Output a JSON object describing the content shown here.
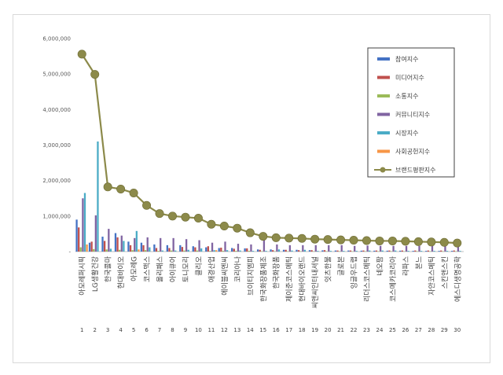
{
  "chart_data": {
    "type": "bar",
    "ylim": [
      0,
      6000000
    ],
    "yticks": [
      "-",
      "1,000,000",
      "2,000,000",
      "3,000,000",
      "4,000,000",
      "5,000,000",
      "6,000,000"
    ],
    "numbers": [
      "1",
      "2",
      "3",
      "4",
      "5",
      "6",
      "7",
      "8",
      "9",
      "10",
      "11",
      "12",
      "13",
      "14",
      "15",
      "16",
      "17",
      "18",
      "19",
      "20",
      "21",
      "22",
      "23",
      "24",
      "25",
      "26",
      "27",
      "28",
      "29",
      "30"
    ],
    "categories": [
      "아모레퍼시픽",
      "LG생활건강",
      "한국콜마",
      "현대바이오",
      "아모레G",
      "코스맥스",
      "올리패스",
      "아이큐어",
      "토니모리",
      "클리오",
      "애경산업",
      "에이블씨엔씨",
      "코리아나",
      "브이티지엠피",
      "한국화장품제조",
      "한국화장품",
      "제이준코스메틱",
      "현대바이오랜드",
      "씨앤씨인터내셔널",
      "잇츠한불",
      "글로본",
      "잉글우드랩",
      "리더스코스메틱",
      "네오팜",
      "코스메카코리아",
      "라파스",
      "본느",
      "자안코스메틱",
      "스킨앤스킨",
      "에스디생명공학"
    ],
    "legend_position": "right",
    "series": [
      {
        "name": "참여지수",
        "color": "#4472c4",
        "type": "bar",
        "values": [
          900000,
          250000,
          420000,
          520000,
          280000,
          250000,
          200000,
          180000,
          180000,
          150000,
          120000,
          100000,
          100000,
          90000,
          60000,
          60000,
          50000,
          50000,
          40000,
          35000,
          30000,
          30000,
          25000,
          25000,
          25000,
          25000,
          20000,
          20000,
          20000,
          20000
        ]
      },
      {
        "name": "미디어지수",
        "color": "#c0504d",
        "type": "bar",
        "values": [
          680000,
          280000,
          300000,
          400000,
          180000,
          180000,
          100000,
          100000,
          130000,
          120000,
          150000,
          110000,
          80000,
          90000,
          50000,
          40000,
          50000,
          40000,
          40000,
          40000,
          30000,
          30000,
          30000,
          30000,
          30000,
          30000,
          30000,
          30000,
          30000,
          30000
        ]
      },
      {
        "name": "소통지수",
        "color": "#9bbb59",
        "type": "bar",
        "values": [
          120000,
          70000,
          60000,
          50000,
          40000,
          40000,
          20000,
          30000,
          30000,
          30000,
          20000,
          20000,
          20000,
          20000,
          10000,
          10000,
          10000,
          10000,
          10000,
          10000,
          10000,
          10000,
          10000,
          10000,
          10000,
          10000,
          10000,
          10000,
          10000,
          10000
        ]
      },
      {
        "name": "커뮤니티지수",
        "color": "#8064a2",
        "type": "bar",
        "values": [
          1500000,
          1020000,
          640000,
          450000,
          380000,
          400000,
          380000,
          380000,
          350000,
          320000,
          250000,
          280000,
          220000,
          200000,
          350000,
          200000,
          180000,
          180000,
          180000,
          180000,
          180000,
          160000,
          170000,
          160000,
          160000,
          160000,
          160000,
          160000,
          150000,
          130000
        ]
      },
      {
        "name": "시장지수",
        "color": "#4bacc6",
        "type": "bar",
        "values": [
          1650000,
          3100000,
          80000,
          300000,
          580000,
          120000,
          30000,
          30000,
          50000,
          90000,
          40000,
          40000,
          30000,
          20000,
          20000,
          60000,
          30000,
          50000,
          20000,
          20000,
          20000,
          20000,
          30000,
          30000,
          30000,
          20000,
          20000,
          20000,
          20000,
          20000
        ]
      },
      {
        "name": "사회공헌지수",
        "color": "#f79646",
        "type": "bar",
        "values": [
          200000,
          0,
          0,
          0,
          60000,
          0,
          0,
          0,
          0,
          0,
          40000,
          0,
          0,
          0,
          0,
          0,
          0,
          0,
          0,
          0,
          0,
          0,
          0,
          0,
          0,
          0,
          0,
          0,
          0,
          0
        ]
      },
      {
        "name": "브랜드평판지수",
        "color": "#8c8a4a",
        "type": "line",
        "values": [
          5560000,
          4990000,
          1820000,
          1760000,
          1650000,
          1300000,
          1070000,
          1000000,
          970000,
          940000,
          770000,
          720000,
          660000,
          530000,
          430000,
          390000,
          380000,
          370000,
          350000,
          340000,
          330000,
          320000,
          310000,
          300000,
          300000,
          290000,
          280000,
          270000,
          260000,
          240000
        ]
      }
    ]
  }
}
